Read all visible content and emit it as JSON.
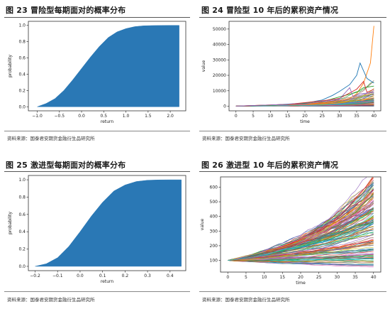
{
  "panels": {
    "p23": {
      "title": "图 23 冒险型每期面对的概率分布",
      "source": "资料来源：国泰君安期货金融衍生品研究所"
    },
    "p24": {
      "title": "图 24 冒险型 10 年后的累积资产情况",
      "source": "资料来源：国泰君安期货金融衍生品研究所"
    },
    "p25": {
      "title": "图 25 激进型每期面对的概率分布",
      "source": "资料来源：国泰君安期货金融衍生品研究所"
    },
    "p26": {
      "title": "图 26 激进型 10 年后的累积资产情况",
      "source": "资料来源：国泰君安期货金融衍生品研究所"
    }
  },
  "chart_data": [
    {
      "id": "fig23",
      "type": "area",
      "xlabel": "return",
      "ylabel": "probability",
      "xlim": [
        -1.2,
        2.35
      ],
      "ylim": [
        -0.05,
        1.05
      ],
      "xticks": [
        -1.0,
        -0.5,
        0.0,
        0.5,
        1.0,
        1.5,
        2.0
      ],
      "xtick_labels": [
        "−1.0",
        "−0.5",
        "0.0",
        "0.5",
        "1.0",
        "1.5",
        "2.0"
      ],
      "yticks": [
        0.0,
        0.2,
        0.4,
        0.6,
        0.8,
        1.0
      ],
      "ytick_labels": [
        "0.0",
        "0.2",
        "0.4",
        "0.6",
        "0.8",
        "1.0"
      ],
      "x": [
        -1.0,
        -0.8,
        -0.6,
        -0.4,
        -0.2,
        0.0,
        0.2,
        0.4,
        0.6,
        0.8,
        1.0,
        1.2,
        1.4,
        1.6,
        1.8,
        2.0,
        2.2
      ],
      "y": [
        0.0,
        0.04,
        0.1,
        0.2,
        0.33,
        0.47,
        0.61,
        0.74,
        0.85,
        0.92,
        0.96,
        0.985,
        0.995,
        0.998,
        0.999,
        1.0,
        1.0
      ],
      "color": "#2a78b5"
    },
    {
      "id": "fig24",
      "type": "line",
      "xlabel": "time",
      "ylabel": "value",
      "xlim": [
        -2,
        42
      ],
      "ylim": [
        -3000,
        55000
      ],
      "xticks": [
        0,
        5,
        10,
        15,
        20,
        25,
        30,
        35,
        40
      ],
      "yticks": [
        0,
        10000,
        20000,
        30000,
        40000,
        50000
      ],
      "ytick_labels": [
        "0",
        "10000",
        "20000",
        "30000",
        "40000",
        "50000"
      ],
      "highlight_series": [
        {
          "color": "#ff7f0e",
          "points": [
            [
              0,
              100
            ],
            [
              10,
              800
            ],
            [
              20,
              1500
            ],
            [
              25,
              2200
            ],
            [
              30,
              3500
            ],
            [
              33,
              5000
            ],
            [
              35,
              8000
            ],
            [
              37,
              15000
            ],
            [
              39,
              28000
            ],
            [
              40,
              52000
            ]
          ]
        },
        {
          "color": "#1f77b4",
          "points": [
            [
              0,
              100
            ],
            [
              10,
              700
            ],
            [
              20,
              2000
            ],
            [
              25,
              4000
            ],
            [
              28,
              7000
            ],
            [
              30,
              9500
            ],
            [
              33,
              14000
            ],
            [
              35,
              20000
            ],
            [
              36,
              28000
            ],
            [
              38,
              18000
            ],
            [
              40,
              15000
            ]
          ]
        },
        {
          "color": "#2ca02c",
          "points": [
            [
              0,
              100
            ],
            [
              10,
              600
            ],
            [
              20,
              1800
            ],
            [
              25,
              3000
            ],
            [
              30,
              6000
            ],
            [
              35,
              9000
            ],
            [
              37,
              12000
            ],
            [
              40,
              13000
            ]
          ]
        },
        {
          "color": "#d62728",
          "points": [
            [
              0,
              100
            ],
            [
              15,
              1200
            ],
            [
              25,
              3500
            ],
            [
              30,
              5000
            ],
            [
              35,
              11000
            ],
            [
              37,
              16000
            ],
            [
              38,
              9000
            ],
            [
              40,
              11000
            ]
          ]
        },
        {
          "color": "#9467bd",
          "points": [
            [
              0,
              100
            ],
            [
              20,
              1500
            ],
            [
              30,
              4500
            ],
            [
              33,
              12000
            ],
            [
              34,
              6000
            ],
            [
              36,
              8000
            ],
            [
              40,
              9000
            ]
          ]
        }
      ],
      "spaghetti": {
        "count": 90,
        "start": 100,
        "final_spread_max": 9000
      }
    },
    {
      "id": "fig25",
      "type": "area",
      "xlabel": "return",
      "ylabel": "probability",
      "xlim": [
        -0.23,
        0.47
      ],
      "ylim": [
        -0.05,
        1.05
      ],
      "xticks": [
        -0.2,
        -0.1,
        0.0,
        0.1,
        0.2,
        0.3,
        0.4
      ],
      "xtick_labels": [
        "−0.2",
        "−0.1",
        "0.0",
        "0.1",
        "0.2",
        "0.3",
        "0.4"
      ],
      "yticks": [
        0.0,
        0.2,
        0.4,
        0.6,
        0.8,
        1.0
      ],
      "ytick_labels": [
        "0.0",
        "0.2",
        "0.4",
        "0.6",
        "0.8",
        "1.0"
      ],
      "x": [
        -0.2,
        -0.15,
        -0.1,
        -0.05,
        0.0,
        0.05,
        0.1,
        0.15,
        0.2,
        0.25,
        0.3,
        0.35,
        0.4,
        0.45
      ],
      "y": [
        0.0,
        0.03,
        0.1,
        0.23,
        0.4,
        0.58,
        0.74,
        0.87,
        0.94,
        0.98,
        0.995,
        0.999,
        1.0,
        1.0
      ],
      "color": "#2a78b5"
    },
    {
      "id": "fig26",
      "type": "line",
      "xlabel": "time",
      "ylabel": "value",
      "xlim": [
        -2,
        42
      ],
      "ylim": [
        20,
        670
      ],
      "xticks": [
        0,
        5,
        10,
        15,
        20,
        25,
        30,
        35,
        40
      ],
      "yticks": [
        100,
        200,
        300,
        400,
        500,
        600
      ],
      "ytick_labels": [
        "100",
        "200",
        "300",
        "400",
        "500",
        "600"
      ],
      "spaghetti": {
        "count": 160,
        "start": 100,
        "final_low": 60,
        "final_high": 660
      }
    }
  ]
}
